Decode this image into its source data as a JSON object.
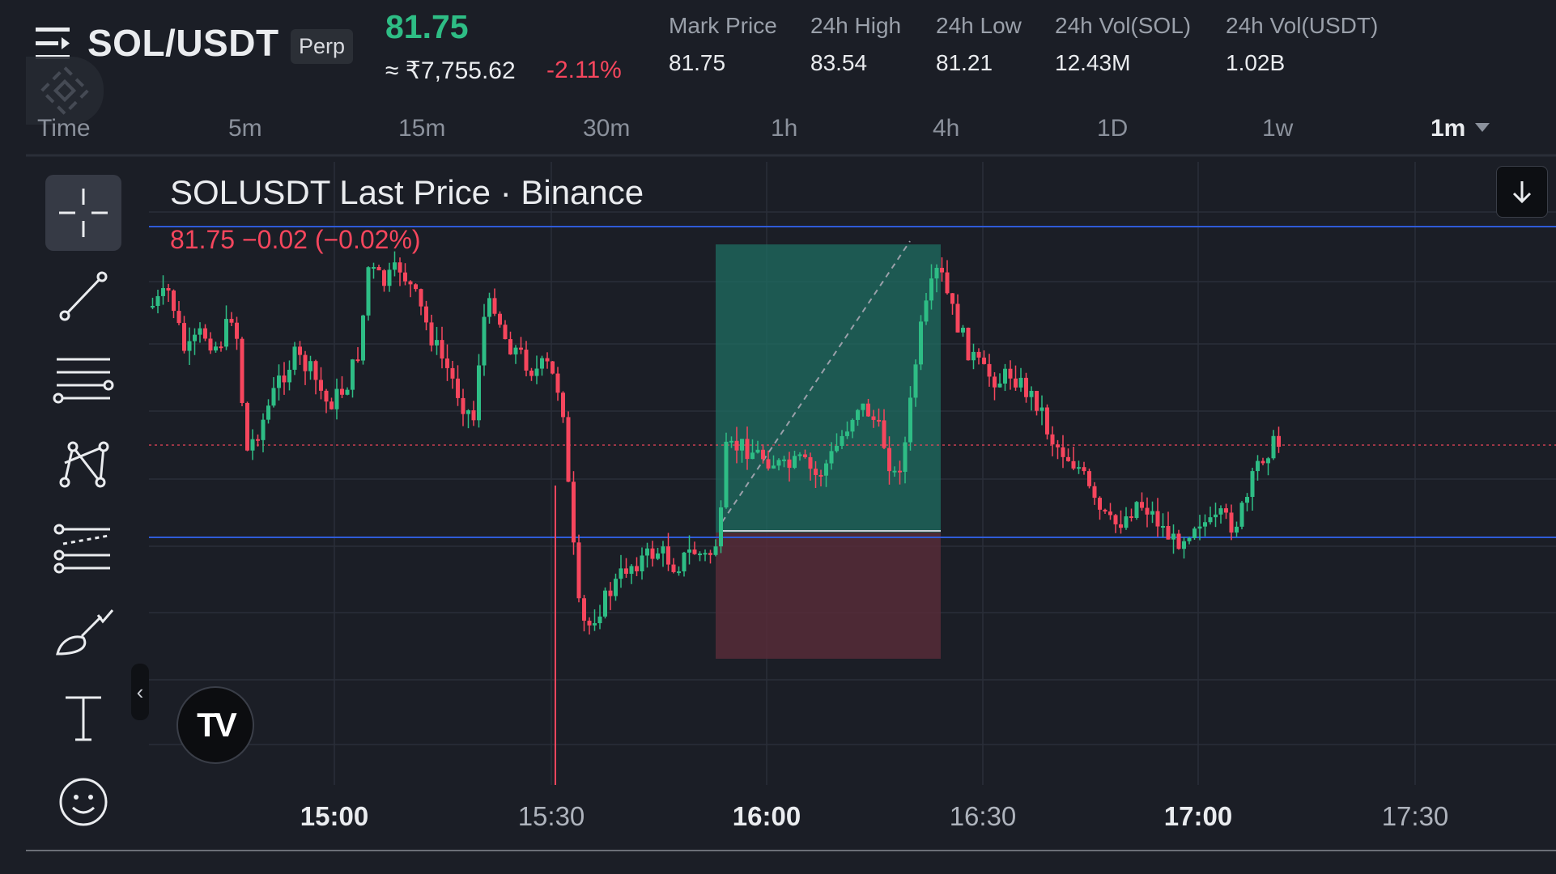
{
  "header": {
    "symbol": "SOL/USDT",
    "contract_badge": "Perp",
    "last_price": "81.75",
    "approx_inr": "≈ ₹7,755.62",
    "change_pct": "-2.11%",
    "stats": [
      {
        "label": "Mark Price",
        "value": "81.75"
      },
      {
        "label": "24h High",
        "value": "83.54"
      },
      {
        "label": "24h Low",
        "value": "81.21"
      },
      {
        "label": "24h Vol(SOL)",
        "value": "12.43M"
      },
      {
        "label": "24h Vol(USDT)",
        "value": "1.02B"
      }
    ]
  },
  "timeframes": {
    "items": [
      "Time",
      "5m",
      "15m",
      "30m",
      "1h",
      "4h",
      "1D",
      "1w"
    ],
    "selected": "1m"
  },
  "toolbar": {
    "tools": [
      "crosshair-icon",
      "trend-line-icon",
      "horizontal-lines-icon",
      "pattern-icon",
      "fib-icon",
      "brush-icon",
      "text-tool-icon",
      "emoji-icon"
    ],
    "collapse_glyph": "‹"
  },
  "chart": {
    "title": "SOLUSDT Last Price · Binance",
    "legend": "81.75  −0.02 (−0.02%)",
    "logo_text": "TV",
    "x_labels": [
      "15:00",
      "15:30",
      "16:00",
      "16:30",
      "17:00",
      "17:30"
    ],
    "x_labels_bold": [
      "15:00",
      "16:00",
      "17:00"
    ]
  },
  "chart_data": {
    "type": "candlestick",
    "title": "SOLUSDT Last Price · Binance",
    "interval": "1m",
    "x_ticks": [
      "15:00",
      "15:30",
      "16:00",
      "16:30",
      "17:00",
      "17:30"
    ],
    "last_price": 81.75,
    "horizontal_lines": [
      {
        "role": "upper",
        "color": "#2f5bd8"
      },
      {
        "role": "lower",
        "color": "#2f5bd8"
      }
    ],
    "position_tool": {
      "type": "long",
      "profit_color": "#1f6e61",
      "loss_color": "#5a2c3a"
    },
    "up_color": "#2ebd85",
    "down_color": "#f6465d"
  }
}
